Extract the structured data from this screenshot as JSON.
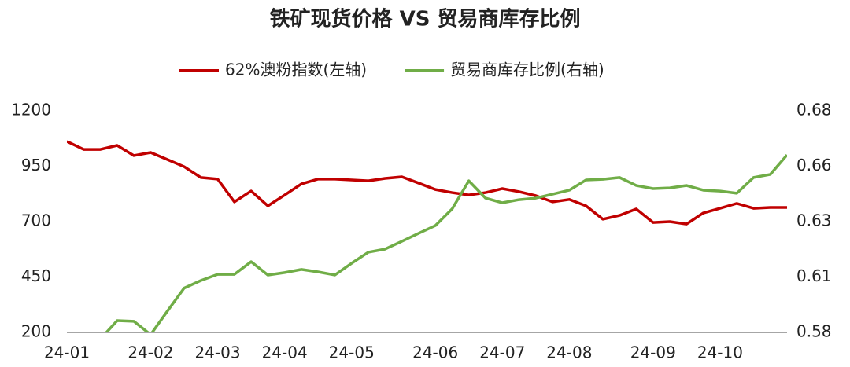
{
  "chart_data": {
    "type": "line",
    "title": "铁矿现货价格 VS 贸易商库存比例",
    "categories": [
      "24-01",
      null,
      null,
      null,
      null,
      "24-02",
      null,
      null,
      null,
      "24-03",
      null,
      null,
      null,
      "24-04",
      null,
      null,
      null,
      "24-05",
      null,
      null,
      null,
      null,
      "24-06",
      null,
      null,
      null,
      "24-07",
      null,
      null,
      null,
      "24-08",
      null,
      null,
      null,
      null,
      "24-09",
      null,
      null,
      null,
      "24-10",
      null,
      null,
      null,
      null
    ],
    "series": [
      {
        "name": "62%澳粉指数(左轴)",
        "color": "#c00000",
        "axis": "y",
        "values": [
          1062,
          1026,
          1026,
          1044,
          998,
          1012,
          980,
          948,
          899,
          892,
          789,
          838,
          771,
          820,
          870,
          892,
          892,
          888,
          884,
          895,
          902,
          874,
          845,
          831,
          820,
          831,
          849,
          835,
          817,
          789,
          800,
          771,
          711,
          728,
          757,
          696,
          700,
          689,
          739,
          760,
          782,
          760,
          764,
          764
        ]
      },
      {
        "name": "贸易商库存比例(右轴)",
        "color": "#70ad47",
        "axis": "y2",
        "values": [
          null,
          null,
          0.577,
          0.5853,
          0.585,
          0.579,
          0.5896,
          0.6,
          0.6034,
          0.6062,
          0.6062,
          0.6119,
          0.6059,
          0.607,
          0.6084,
          0.6073,
          0.6059,
          0.6112,
          0.6162,
          0.6176,
          0.6211,
          0.6247,
          0.6282,
          0.6357,
          0.6484,
          0.6406,
          0.6385,
          0.6399,
          0.6406,
          0.6424,
          0.6442,
          0.6488,
          0.6491,
          0.6499,
          0.6463,
          0.6449,
          0.6452,
          0.6463,
          0.6442,
          0.6438,
          0.6428,
          0.6499,
          0.6513,
          0.6601
        ]
      }
    ],
    "ylim": [
      200,
      1200
    ],
    "yticks": [
      200,
      450,
      700,
      950,
      1200
    ],
    "y2lim": [
      0.58,
      0.68
    ],
    "y2ticks": [
      {
        "value": 0.58,
        "label": "0.58"
      },
      {
        "value": 0.605,
        "label": "0.61"
      },
      {
        "value": 0.63,
        "label": "0.63"
      },
      {
        "value": 0.655,
        "label": "0.66"
      },
      {
        "value": 0.68,
        "label": "0.68"
      }
    ],
    "grid": false,
    "legend": "top"
  }
}
